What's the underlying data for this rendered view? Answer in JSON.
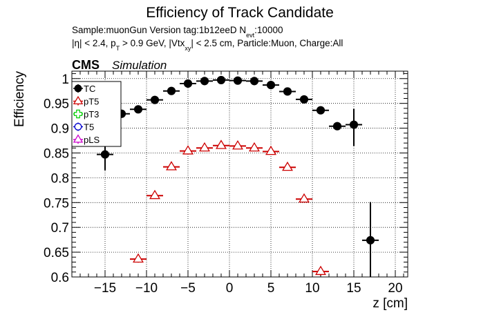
{
  "chart_data": {
    "type": "scatter",
    "title": "Efficiency of Track Candidate",
    "subtitle_line1": {
      "sample_prefix": "Sample:muonGun   Version tag:1b12eeD  N",
      "n_sub": "evt",
      "n_value": ":10000"
    },
    "subtitle_line2": {
      "part1": "|η| < 2.4, p",
      "pt_sub": "T",
      "part2": " > 0.9 GeV, |Vtx",
      "vtx_sub": "xy",
      "part3": "| < 2.5 cm, Particle:Muon, Charge:All"
    },
    "cms_label": "CMS",
    "simulation_label": "Simulation",
    "xlabel": "z [cm]",
    "ylabel": "Efficiency",
    "xlim": [
      -19,
      21.5
    ],
    "ylim": [
      0.6,
      1.015
    ],
    "xticks": [
      -15,
      -10,
      -5,
      0,
      5,
      10,
      15,
      20
    ],
    "xtick_labels": [
      "−15",
      "−10",
      "−5",
      "0",
      "5",
      "10",
      "15",
      "20"
    ],
    "yticks": [
      0.6,
      0.65,
      0.7,
      0.75,
      0.8,
      0.85,
      0.9,
      0.95,
      1.0
    ],
    "ytick_labels": [
      "0.6",
      "0.65",
      "0.7",
      "0.75",
      "0.8",
      "0.85",
      "0.9",
      "0.95",
      "1"
    ],
    "grid": true,
    "legend_position": "top-left",
    "series": [
      {
        "name": "TC",
        "color": "#000000",
        "marker": "filled-circle",
        "points": [
          {
            "x": -15,
            "y": 0.847,
            "xerr": 1,
            "ylo": 0.815,
            "yhi": 0.872
          },
          {
            "x": -13,
            "y": 0.929,
            "xerr": 1,
            "ylo": 0.924,
            "yhi": 0.934
          },
          {
            "x": -11,
            "y": 0.938,
            "xerr": 1,
            "ylo": 0.935,
            "yhi": 0.941
          },
          {
            "x": -9,
            "y": 0.957,
            "xerr": 1,
            "ylo": 0.955,
            "yhi": 0.959
          },
          {
            "x": -7,
            "y": 0.975,
            "xerr": 1,
            "ylo": 0.974,
            "yhi": 0.976
          },
          {
            "x": -5,
            "y": 0.99,
            "xerr": 1,
            "ylo": 0.989,
            "yhi": 0.991
          },
          {
            "x": -3,
            "y": 0.995,
            "xerr": 1,
            "ylo": 0.994,
            "yhi": 0.996
          },
          {
            "x": -1,
            "y": 0.997,
            "xerr": 1,
            "ylo": 0.996,
            "yhi": 0.998
          },
          {
            "x": 1,
            "y": 0.996,
            "xerr": 1,
            "ylo": 0.995,
            "yhi": 0.997
          },
          {
            "x": 3,
            "y": 0.995,
            "xerr": 1,
            "ylo": 0.994,
            "yhi": 0.996
          },
          {
            "x": 5,
            "y": 0.987,
            "xerr": 1,
            "ylo": 0.986,
            "yhi": 0.988
          },
          {
            "x": 7,
            "y": 0.974,
            "xerr": 1,
            "ylo": 0.973,
            "yhi": 0.975
          },
          {
            "x": 9,
            "y": 0.958,
            "xerr": 1,
            "ylo": 0.956,
            "yhi": 0.96
          },
          {
            "x": 11,
            "y": 0.936,
            "xerr": 1,
            "ylo": 0.933,
            "yhi": 0.939
          },
          {
            "x": 13,
            "y": 0.904,
            "xerr": 1,
            "ylo": 0.896,
            "yhi": 0.912
          },
          {
            "x": 15,
            "y": 0.907,
            "xerr": 1,
            "ylo": 0.864,
            "yhi": 0.939
          },
          {
            "x": 17,
            "y": 0.674,
            "xerr": 1,
            "ylo": 0.6,
            "yhi": 0.751
          }
        ]
      },
      {
        "name": "pT5",
        "color": "#cc0000",
        "marker": "open-triangle",
        "points": [
          {
            "x": -11,
            "y": 0.636,
            "xerr": 1,
            "ylo": 0.629,
            "yhi": 0.644
          },
          {
            "x": -9,
            "y": 0.764,
            "xerr": 1,
            "ylo": 0.76,
            "yhi": 0.768
          },
          {
            "x": -7,
            "y": 0.822,
            "xerr": 1,
            "ylo": 0.819,
            "yhi": 0.825
          },
          {
            "x": -5,
            "y": 0.854,
            "xerr": 1,
            "ylo": 0.852,
            "yhi": 0.857
          },
          {
            "x": -3,
            "y": 0.86,
            "xerr": 1,
            "ylo": 0.858,
            "yhi": 0.862
          },
          {
            "x": -1,
            "y": 0.865,
            "xerr": 1,
            "ylo": 0.863,
            "yhi": 0.867
          },
          {
            "x": 1,
            "y": 0.864,
            "xerr": 1,
            "ylo": 0.862,
            "yhi": 0.866
          },
          {
            "x": 3,
            "y": 0.86,
            "xerr": 1,
            "ylo": 0.858,
            "yhi": 0.862
          },
          {
            "x": 5,
            "y": 0.853,
            "xerr": 1,
            "ylo": 0.851,
            "yhi": 0.856
          },
          {
            "x": 7,
            "y": 0.821,
            "xerr": 1,
            "ylo": 0.818,
            "yhi": 0.824
          },
          {
            "x": 9,
            "y": 0.757,
            "xerr": 1,
            "ylo": 0.753,
            "yhi": 0.761
          },
          {
            "x": 11,
            "y": 0.611,
            "xerr": 1,
            "ylo": 0.603,
            "yhi": 0.619
          }
        ]
      },
      {
        "name": "pT3",
        "color": "#00cc00",
        "marker": "open-plus",
        "points": []
      },
      {
        "name": "T5",
        "color": "#0000cc",
        "marker": "open-circle",
        "points": []
      },
      {
        "name": "pLS",
        "color": "#cc00cc",
        "marker": "open-triangle",
        "points": []
      }
    ]
  }
}
